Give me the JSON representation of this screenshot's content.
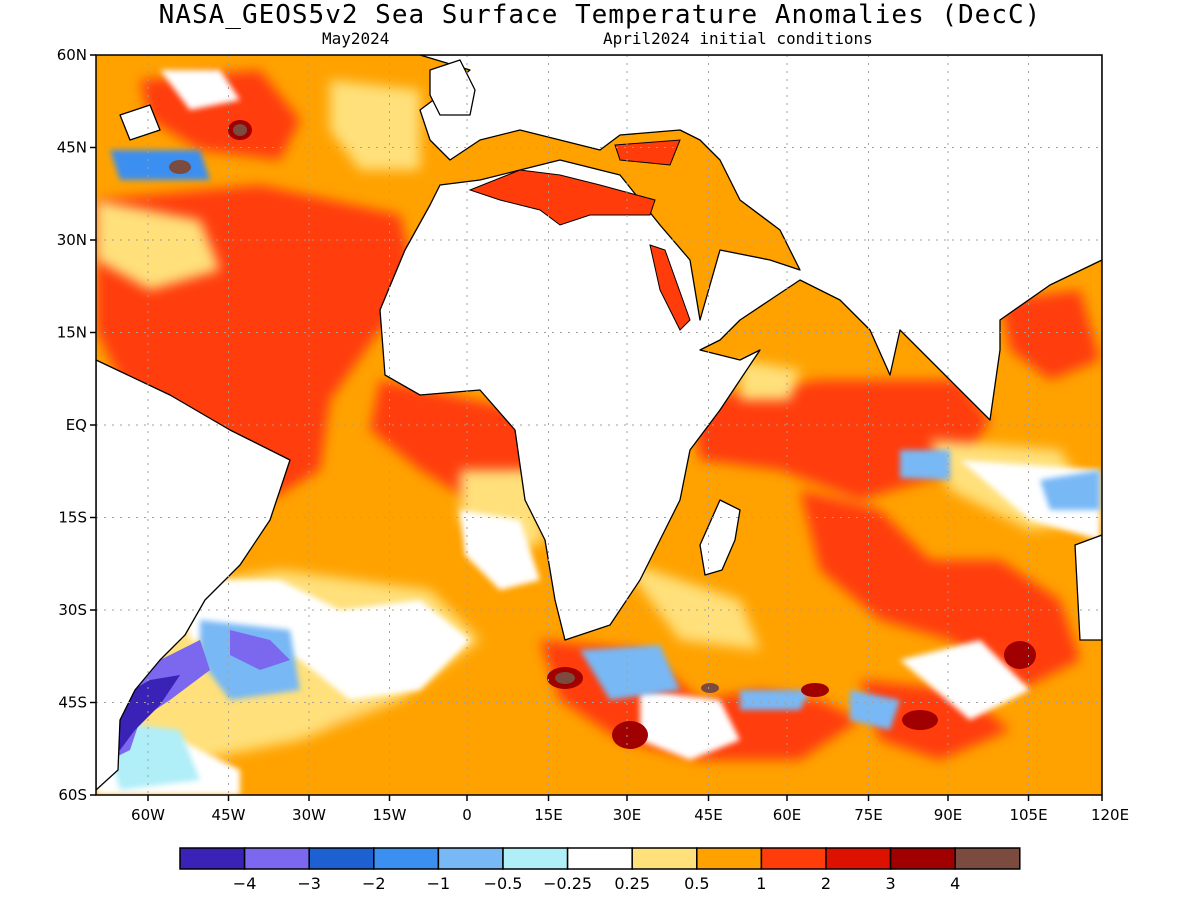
{
  "title": "NASA_GEOS5v2 Sea Surface Temperature Anomalies (DecC)",
  "subtitle_left": "May2024",
  "subtitle_right": "April2024 initial conditions",
  "lat_labels": [
    "60N",
    "45N",
    "30N",
    "15N",
    "EQ",
    "15S",
    "30S",
    "45S",
    "60S"
  ],
  "lon_labels": [
    "60W",
    "45W",
    "30W",
    "15W",
    "0",
    "15E",
    "30E",
    "45E",
    "60E",
    "75E",
    "90E",
    "105E",
    "120E"
  ],
  "legend": {
    "colors": [
      "#3a22b6",
      "#7b68ee",
      "#1c60d2",
      "#3a8ff0",
      "#78b8f5",
      "#b0eef8",
      "#ffffff",
      "#ffe07a",
      "#ffa200",
      "#ff3c0a",
      "#dc1100",
      "#a00000",
      "#7a4b3e"
    ],
    "labels": [
      "−4",
      "−3",
      "−2",
      "−1",
      "−0.5",
      "−0.25",
      "0.25",
      "0.5",
      "1",
      "2",
      "3",
      "4"
    ]
  },
  "colors": {
    "land": "#ffffff",
    "coast": "#000000",
    "grid": "#a0a0a0"
  }
}
